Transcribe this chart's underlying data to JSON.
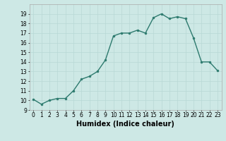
{
  "x": [
    0,
    1,
    2,
    3,
    4,
    5,
    6,
    7,
    8,
    9,
    10,
    11,
    12,
    13,
    14,
    15,
    16,
    17,
    18,
    19,
    20,
    21,
    22,
    23
  ],
  "y": [
    10.1,
    9.6,
    10.0,
    10.2,
    10.2,
    11.0,
    12.2,
    12.5,
    13.0,
    14.2,
    16.7,
    17.0,
    17.0,
    17.3,
    17.0,
    18.6,
    19.0,
    18.5,
    18.7,
    18.5,
    16.5,
    14.0,
    14.0,
    13.1
  ],
  "line_color": "#2d7a6e",
  "marker": "o",
  "marker_size": 2.0,
  "bg_color": "#cde8e5",
  "grid_color": "#b8d8d5",
  "xlabel": "Humidex (Indice chaleur)",
  "xlabel_fontsize": 7,
  "ylim": [
    9,
    20
  ],
  "xlim": [
    -0.5,
    23.5
  ],
  "yticks": [
    9,
    10,
    11,
    12,
    13,
    14,
    15,
    16,
    17,
    18,
    19
  ],
  "xticks": [
    0,
    1,
    2,
    3,
    4,
    5,
    6,
    7,
    8,
    9,
    10,
    11,
    12,
    13,
    14,
    15,
    16,
    17,
    18,
    19,
    20,
    21,
    22,
    23
  ],
  "tick_fontsize": 5.5,
  "linewidth": 1.0
}
